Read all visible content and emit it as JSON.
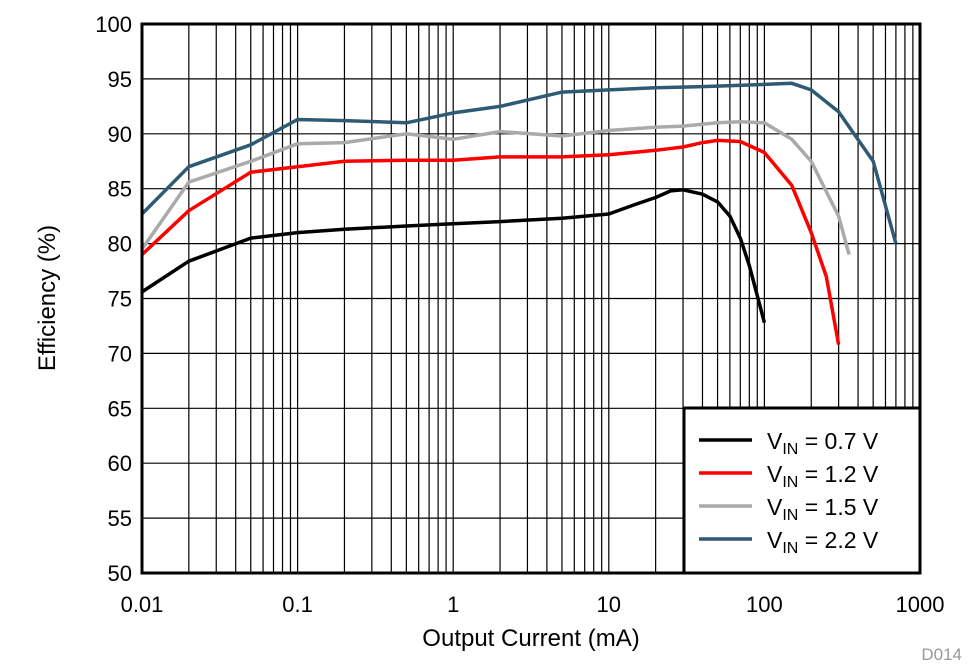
{
  "chart_data": {
    "type": "line",
    "title": "",
    "xlabel": "Output Current (mA)",
    "ylabel": "Efficiency (%)",
    "xscale": "log",
    "xlim": [
      0.01,
      1000
    ],
    "ylim": [
      50,
      100
    ],
    "grid": true,
    "x_ticks": [
      "0.01",
      "0.1",
      "1",
      "10",
      "100",
      "1000"
    ],
    "y_ticks": [
      "50",
      "55",
      "60",
      "65",
      "70",
      "75",
      "80",
      "85",
      "90",
      "95",
      "100"
    ],
    "legend_position": "bottom-right",
    "watermark": "D014",
    "series": [
      {
        "name": "VIN = 0.7 V",
        "label_main": "V",
        "label_sub": "IN",
        "label_rest": " = 0.7 V",
        "color": "#000000",
        "x": [
          0.01,
          0.02,
          0.05,
          0.1,
          0.2,
          0.5,
          1,
          2,
          5,
          10,
          15,
          20,
          25,
          30,
          40,
          50,
          60,
          70,
          80,
          100
        ],
        "y": [
          75.6,
          78.4,
          80.5,
          81,
          81.3,
          81.6,
          81.8,
          82,
          82.3,
          82.7,
          83.6,
          84.2,
          84.8,
          84.9,
          84.5,
          83.8,
          82.5,
          80.5,
          78,
          72.8
        ]
      },
      {
        "name": "VIN = 1.2 V",
        "label_main": "V",
        "label_sub": "IN",
        "label_rest": " = 1.2 V",
        "color": "#ff0000",
        "x": [
          0.01,
          0.02,
          0.05,
          0.1,
          0.2,
          0.5,
          1,
          2,
          5,
          10,
          20,
          30,
          40,
          50,
          70,
          100,
          150,
          200,
          250,
          300
        ],
        "y": [
          79,
          83,
          86.5,
          87,
          87.5,
          87.6,
          87.6,
          87.9,
          87.9,
          88.1,
          88.5,
          88.8,
          89.2,
          89.4,
          89.3,
          88.3,
          85.3,
          81,
          77,
          70.8
        ]
      },
      {
        "name": "VIN = 1.5 V",
        "label_main": "V",
        "label_sub": "IN",
        "label_rest": " = 1.5 V",
        "color": "#aaaaaa",
        "x": [
          0.01,
          0.02,
          0.05,
          0.1,
          0.2,
          0.5,
          1,
          2,
          5,
          10,
          20,
          30,
          50,
          70,
          100,
          150,
          200,
          300,
          350
        ],
        "y": [
          79.5,
          85.6,
          87.5,
          89.1,
          89.2,
          90,
          89.5,
          90.2,
          89.8,
          90.3,
          90.6,
          90.7,
          91,
          91.1,
          91,
          89.5,
          87.5,
          82.5,
          79
        ]
      },
      {
        "name": "VIN = 2.2 V",
        "label_main": "V",
        "label_sub": "IN",
        "label_rest": " = 2.2 V",
        "color": "#2e5a74",
        "x": [
          0.01,
          0.02,
          0.05,
          0.1,
          0.2,
          0.5,
          1,
          2,
          5,
          10,
          20,
          40,
          100,
          150,
          200,
          300,
          500,
          700
        ],
        "y": [
          82.7,
          87,
          89,
          91.3,
          91.2,
          91,
          91.9,
          92.5,
          93.8,
          94,
          94.2,
          94.3,
          94.5,
          94.6,
          94,
          92,
          87.5,
          80
        ]
      }
    ]
  }
}
